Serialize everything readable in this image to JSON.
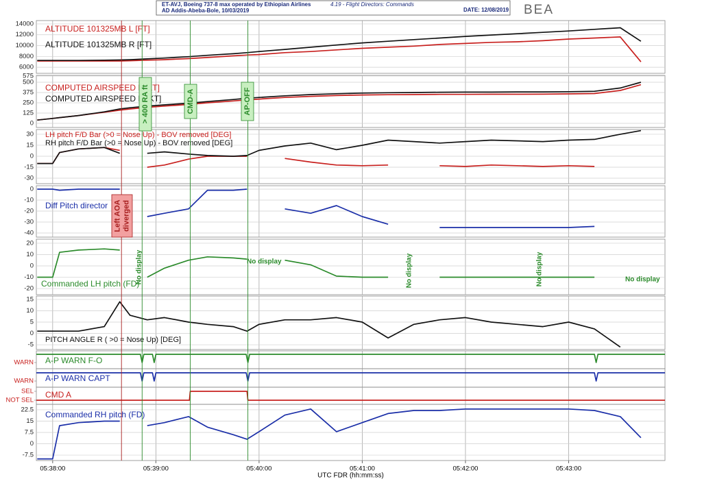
{
  "header": {
    "aircraft": "ET-AVJ, Boeing 737-8 max operated by Ethiopian Airlines",
    "location": "AD Addis-Abeba-Bole, 10/03/2019",
    "section": "4.19 - Flight Directors: Commands",
    "date": "DATE: 12/08/2019",
    "logo": "BEA"
  },
  "x_axis": {
    "label": "UTC FDR (hh:mm:ss)",
    "xlim": [
      -9.5,
      356
    ],
    "xticks": [
      {
        "value": 0,
        "label": "05:38:00"
      },
      {
        "value": 60,
        "label": "05:39:00"
      },
      {
        "value": 120,
        "label": "05:40:00"
      },
      {
        "value": 180,
        "label": "05:41:00"
      },
      {
        "value": 240,
        "label": "05:42:00"
      },
      {
        "value": 300,
        "label": "05:43:00"
      }
    ]
  },
  "events": [
    {
      "x": 40,
      "label": [
        "Left AOA",
        "diverged"
      ],
      "color": "#a82020",
      "fill": "#f2a0a0"
    },
    {
      "x": 52,
      "label": "> 400 RA ft",
      "color": "#2a8a2a",
      "fill": "#c8efc0"
    },
    {
      "x": 80,
      "label": "CMD-A",
      "color": "#2a8a2a",
      "fill": "#c8efc0"
    },
    {
      "x": 113.5,
      "label": "AP-OFF",
      "color": "#2a8a2a",
      "fill": "#c8efc0"
    }
  ],
  "chart_data": [
    {
      "type": "line",
      "ylim": [
        4875,
        14625
      ],
      "yticks": [
        6000,
        8000,
        10000,
        12000,
        14000
      ],
      "grid": true,
      "x": [
        -9,
        0,
        4,
        15,
        30,
        39,
        45,
        55,
        65,
        79,
        90,
        105,
        113,
        120,
        135,
        150,
        165,
        180,
        195,
        210,
        225,
        240,
        255,
        270,
        285,
        300,
        315,
        330,
        342
      ],
      "series": [
        {
          "name": "ALTITUDE 101325MB L [FT]",
          "color": "#c8201e",
          "values": [
            7150,
            7150,
            7150,
            7150,
            7150,
            7150,
            7200,
            7300,
            7400,
            7600,
            7800,
            8100,
            8250,
            8350,
            8700,
            8900,
            9200,
            9500,
            9700,
            9900,
            10200,
            10400,
            10600,
            10700,
            10900,
            11200,
            11400,
            11600,
            7000
          ]
        },
        {
          "name": "ALTITUDE 101325MB R [FT]",
          "color": "#111111",
          "values": [
            7250,
            7250,
            7250,
            7250,
            7300,
            7350,
            7400,
            7550,
            7700,
            7950,
            8200,
            8500,
            8700,
            8900,
            9300,
            9700,
            10100,
            10500,
            10800,
            11100,
            11400,
            11700,
            11950,
            12200,
            12450,
            12700,
            13000,
            13300,
            10800
          ]
        }
      ]
    },
    {
      "type": "line",
      "ylim": [
        -50,
        583
      ],
      "yticks": [
        0,
        125,
        250,
        375,
        500,
        575
      ],
      "grid": true,
      "x": [
        -9,
        0,
        4,
        15,
        30,
        39,
        45,
        55,
        65,
        79,
        90,
        105,
        113,
        120,
        135,
        150,
        165,
        180,
        195,
        210,
        225,
        240,
        255,
        270,
        285,
        300,
        315,
        330,
        342
      ],
      "series": [
        {
          "name": "COMPUTED AIRSPEED L [KT]",
          "color": "#c8201e",
          "values": [
            40,
            60,
            70,
            95,
            135,
            160,
            175,
            195,
            210,
            230,
            250,
            272,
            285,
            295,
            315,
            328,
            338,
            345,
            348,
            350,
            352,
            352,
            354,
            354,
            355,
            358,
            362,
            400,
            470
          ]
        },
        {
          "name": "COMPUTED AIRSPEED R [KT]",
          "color": "#111111",
          "values": [
            40,
            60,
            70,
            95,
            140,
            175,
            190,
            210,
            225,
            245,
            265,
            290,
            305,
            315,
            335,
            350,
            360,
            368,
            372,
            375,
            378,
            380,
            380,
            382,
            382,
            385,
            390,
            430,
            500
          ]
        }
      ]
    },
    {
      "type": "line",
      "ylim": [
        -37.5,
        36.5
      ],
      "yticks": [
        -30,
        -15,
        0,
        15,
        30
      ],
      "grid": true,
      "x": [
        -9,
        0,
        4,
        15,
        30,
        39,
        45,
        55,
        65,
        79,
        90,
        105,
        113,
        120,
        135,
        150,
        165,
        180,
        195,
        210,
        225,
        240,
        255,
        270,
        285,
        300,
        315,
        330,
        342
      ],
      "series": [
        {
          "name": "LH pitch F/D Bar (>0 = Nose Up) - BOV removed [DEG]",
          "color": "#c8201e",
          "values": [
            -10,
            -10,
            5,
            10,
            12,
            8,
            null,
            -15,
            -12,
            -4,
            0,
            0,
            0,
            null,
            -3,
            -8,
            -12,
            -13,
            -12,
            null,
            -13,
            -14,
            -12,
            -13,
            -14,
            -13,
            -14,
            null,
            null
          ]
        },
        {
          "name": "RH pitch F/D Bar (>0 = Nose Up) - BOV removed [DEG]",
          "color": "#111111",
          "values": [
            -10,
            -10,
            5,
            10,
            12,
            4,
            null,
            4,
            6,
            3,
            1,
            0,
            1,
            8,
            14,
            18,
            9,
            15,
            22,
            20,
            18,
            20,
            22,
            21,
            20,
            22,
            23,
            30,
            35
          ]
        }
      ]
    },
    {
      "type": "line",
      "ylim": [
        -43.75,
        3.1
      ],
      "yticks": [
        -40,
        -30,
        -20,
        -10,
        0
      ],
      "grid": true,
      "x": [
        -9,
        0,
        4,
        15,
        30,
        39,
        45,
        55,
        65,
        79,
        90,
        105,
        113,
        120,
        135,
        150,
        165,
        180,
        195,
        210,
        225,
        240,
        255,
        270,
        285,
        300,
        315,
        330,
        342
      ],
      "series": [
        {
          "name": "Diff Pitch director",
          "color": "#1a2ea8",
          "values": [
            0,
            0,
            -1,
            0,
            0,
            0,
            null,
            -25,
            -22,
            -18,
            -1,
            -1,
            0,
            null,
            -18,
            -22,
            -15,
            -25,
            -32,
            null,
            -35,
            -35,
            -35,
            -35,
            -35,
            -35,
            -34,
            null,
            null
          ]
        }
      ]
    },
    {
      "type": "line",
      "ylim": [
        -25.4,
        23.6
      ],
      "yticks": [
        -20,
        -10,
        0,
        10,
        20
      ],
      "grid": true,
      "x": [
        -9,
        0,
        4,
        15,
        30,
        39,
        45,
        55,
        65,
        79,
        90,
        105,
        113,
        120,
        135,
        150,
        165,
        180,
        195,
        210,
        225,
        240,
        255,
        270,
        285,
        300,
        315,
        330,
        342
      ],
      "series": [
        {
          "name": "Commanded LH pitch (FD)",
          "color": "#2a8a2a",
          "values": [
            -10,
            -10,
            12,
            14,
            15,
            14,
            null,
            -10,
            -2,
            5,
            8,
            7,
            6,
            null,
            5,
            1,
            -9,
            -10,
            -10,
            null,
            -10,
            -10,
            -10,
            -10,
            -10,
            -10,
            -10,
            null,
            null
          ]
        }
      ],
      "annotations": [
        {
          "label": "No display"
        },
        {
          "label": "No display"
        },
        {
          "label": "No display"
        },
        {
          "label": "No display"
        },
        {
          "label": "No display"
        }
      ]
    },
    {
      "type": "line",
      "ylim": [
        -7.1,
        16.5
      ],
      "yticks": [
        -5,
        0,
        5,
        10,
        15
      ],
      "grid": true,
      "x": [
        -9,
        0,
        4,
        15,
        30,
        39,
        45,
        55,
        65,
        79,
        90,
        105,
        113,
        120,
        135,
        150,
        165,
        180,
        195,
        210,
        225,
        240,
        255,
        270,
        285,
        300,
        315,
        330,
        342
      ],
      "series": [
        {
          "name": "PITCH ANGLE R ( >0 = Nose Up) [DEG]",
          "color": "#111111",
          "values": [
            1,
            1,
            1,
            1,
            3,
            14,
            8,
            6,
            7,
            5,
            4,
            3,
            1,
            4,
            6,
            6,
            7,
            5,
            -2,
            4,
            6,
            7,
            5,
            4,
            3,
            5,
            2,
            -6,
            null
          ]
        }
      ]
    },
    {
      "type": "line",
      "ylim": [
        -0.75,
        1.42
      ],
      "yticks": [
        {
          "value": 0,
          "label": "WARN"
        }
      ],
      "grid": false,
      "tick_color": "#c8201e",
      "x": [
        -9.5,
        51,
        52,
        53,
        58,
        59,
        60,
        112.5,
        113.5,
        114.5,
        315,
        316,
        317,
        356
      ],
      "series": [
        {
          "name": "A-P WARN F-O",
          "color": "#2a8a2a",
          "values": [
            1,
            1,
            0,
            1,
            1,
            0,
            1,
            1,
            0,
            1,
            1,
            0,
            1,
            1
          ]
        }
      ]
    },
    {
      "type": "line",
      "ylim": [
        -0.75,
        1.5
      ],
      "yticks": [
        {
          "value": 0,
          "label": "WARN"
        }
      ],
      "grid": false,
      "tick_color": "#c8201e",
      "x": [
        -9.5,
        51,
        52,
        53,
        58,
        59,
        60,
        112.5,
        113.5,
        114.5,
        315,
        316,
        317,
        356
      ],
      "series": [
        {
          "name": "A-P WARN CAPT",
          "color": "#1a2ea8",
          "values": [
            1,
            1,
            0,
            1,
            1,
            0,
            1,
            1,
            0,
            1,
            1,
            0,
            1,
            1
          ]
        }
      ]
    },
    {
      "type": "line",
      "ylim": [
        -0.46,
        1.46
      ],
      "yticks": [
        {
          "value": 1,
          "label": "SEL"
        },
        {
          "value": 0,
          "label": "NOT SEL"
        }
      ],
      "grid": false,
      "tick_color": "#c8201e",
      "x": [
        -9.5,
        79.5,
        80,
        113,
        113.5,
        356
      ],
      "series": [
        {
          "name": "CMD A",
          "color": "#c8201e",
          "values": [
            0,
            0,
            1,
            1,
            0,
            0
          ]
        }
      ]
    },
    {
      "type": "line",
      "ylim": [
        -11.1,
        26.1
      ],
      "yticks": [
        -7.5,
        0,
        7.5,
        15,
        22.5
      ],
      "grid": true,
      "x": [
        -9,
        0,
        4,
        15,
        30,
        39,
        45,
        55,
        65,
        79,
        90,
        105,
        113,
        120,
        135,
        150,
        165,
        180,
        195,
        210,
        225,
        240,
        255,
        270,
        285,
        300,
        315,
        330,
        342
      ],
      "series": [
        {
          "name": "Commanded RH pitch (FD)",
          "color": "#1a2ea8",
          "values": [
            -10,
            -10,
            12,
            14,
            15,
            15,
            null,
            12,
            14,
            18,
            11,
            6,
            3,
            8,
            19,
            23,
            8,
            14,
            20,
            22,
            22,
            23,
            23,
            23,
            23,
            23,
            22,
            18,
            4
          ]
        }
      ]
    }
  ]
}
